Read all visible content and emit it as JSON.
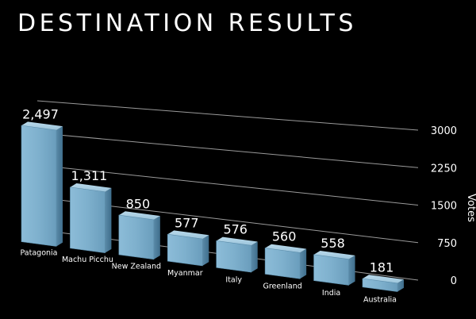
{
  "chart_data": {
    "type": "bar",
    "title": "DESTINATION RESULTS",
    "ylabel": "Votes",
    "ylim": [
      0,
      3000
    ],
    "yticks": [
      "0",
      "750",
      "1500",
      "2250",
      "3000"
    ],
    "categories": [
      "Patagonia",
      "Machu Picchu",
      "New Zealand",
      "Myanmar",
      "Italy",
      "Greenland",
      "India",
      "Australia"
    ],
    "values": [
      2497,
      1311,
      850,
      577,
      576,
      560,
      558,
      181
    ],
    "value_labels": [
      "2,497",
      "1,311",
      "850",
      "577",
      "576",
      "560",
      "558",
      "181"
    ],
    "bar_color": "#7fb1cf",
    "grid": true,
    "legend": "none"
  }
}
